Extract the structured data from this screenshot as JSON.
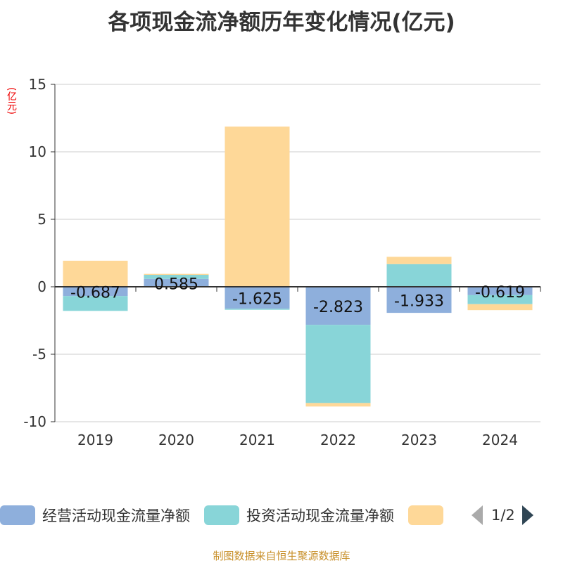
{
  "title": "各项现金流净额历年变化情况(亿元)",
  "unit": "(亿元)",
  "source": "制图数据来自恒生聚源数据库",
  "legend_page": "1/2",
  "chart_data": {
    "type": "bar",
    "stacked": true,
    "title": "各项现金流净额历年变化情况(亿元)",
    "ylabel": "(亿元)",
    "ylim": [
      -10,
      15
    ],
    "yticks": [
      15,
      10,
      5,
      0,
      -5,
      -10
    ],
    "categories": [
      "2019",
      "2020",
      "2021",
      "2022",
      "2023",
      "2024"
    ],
    "series": [
      {
        "name": "经营活动现金流量净额",
        "color": "#8eafdc",
        "values": [
          -0.687,
          0.585,
          -1.625,
          -2.823,
          -1.933,
          -0.619
        ],
        "labels": [
          "-0.687",
          "0.585",
          "-1.625",
          "-2.823",
          "-1.933",
          "-0.619"
        ]
      },
      {
        "name": "投资活动现金流量净额",
        "color": "#88d5d8",
        "values": [
          -1.1,
          0.3,
          -0.08,
          -5.79,
          1.68,
          -0.67
        ]
      },
      {
        "name": "",
        "color": "#fed898",
        "values": [
          1.93,
          0.07,
          11.87,
          -0.26,
          0.54,
          -0.44
        ]
      }
    ],
    "grid": true,
    "legend": "bottom"
  }
}
